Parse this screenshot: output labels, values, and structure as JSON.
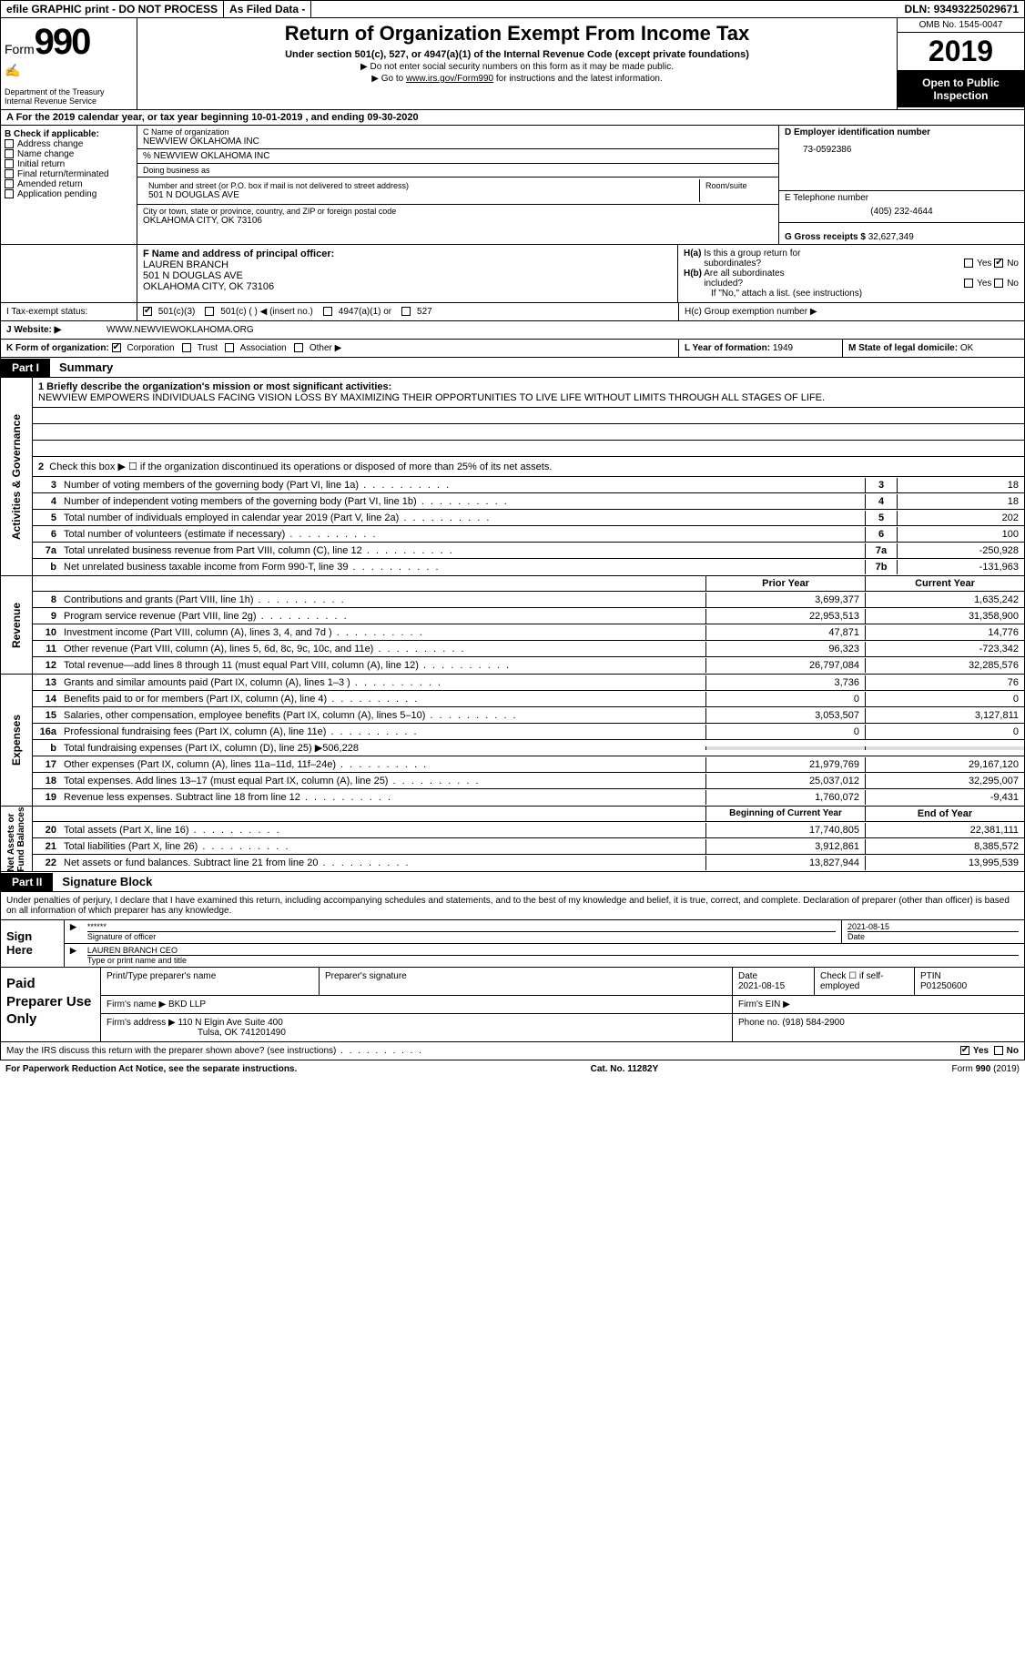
{
  "top": {
    "efile": "efile GRAPHIC print - DO NOT PROCESS",
    "asfiled": "As Filed Data -",
    "dln_lbl": "DLN:",
    "dln": "93493225029671"
  },
  "hdr": {
    "form": "Form",
    "num": "990",
    "dept": "Department of the Treasury\nInternal Revenue Service",
    "title": "Return of Organization Exempt From Income Tax",
    "sub": "Under section 501(c), 527, or 4947(a)(1) of the Internal Revenue Code (except private foundations)",
    "note1": "▶ Do not enter social security numbers on this form as it may be made public.",
    "note2_pre": "▶ Go to ",
    "note2_link": "www.irs.gov/Form990",
    "note2_post": " for instructions and the latest information.",
    "omb": "OMB No. 1545-0047",
    "year": "2019",
    "open": "Open to Public Inspection"
  },
  "a": {
    "txt": "A   For the 2019 calendar year, or tax year beginning 10-01-2019   , and ending 09-30-2020"
  },
  "b": {
    "lbl": "B Check if applicable:",
    "items": [
      "Address change",
      "Name change",
      "Initial return",
      "Final return/terminated",
      "Amended return",
      "Application pending"
    ]
  },
  "c": {
    "name_lbl": "C Name of organization",
    "name": "NEWVIEW OKLAHOMA INC",
    "pct": "% NEWVIEW OKLAHOMA INC",
    "dba_lbl": "Doing business as",
    "addr_lbl": "Number and street (or P.O. box if mail is not delivered to street address)",
    "room_lbl": "Room/suite",
    "addr": "501 N DOUGLAS AVE",
    "city_lbl": "City or town, state or province, country, and ZIP or foreign postal code",
    "city": "OKLAHOMA CITY, OK  73106"
  },
  "d": {
    "lbl": "D Employer identification number",
    "val": "73-0592386"
  },
  "e": {
    "lbl": "E Telephone number",
    "val": "(405) 232-4644"
  },
  "g": {
    "lbl": "G Gross receipts $",
    "val": "32,627,349"
  },
  "f": {
    "lbl": "F  Name and address of principal officer:",
    "name": "LAUREN BRANCH",
    "addr": "501 N DOUGLAS AVE",
    "city": "OKLAHOMA CITY, OK  73106"
  },
  "h": {
    "a": "H(a)  Is this a group return for subordinates?",
    "yes": "Yes",
    "no": "No",
    "b": "H(b)  Are all subordinates included?",
    "note": "If \"No,\" attach a list. (see instructions)",
    "c": "H(c)  Group exemption number ▶"
  },
  "i": {
    "lbl": "I   Tax-exempt status:",
    "o1": "501(c)(3)",
    "o2": "501(c) (   ) ◀ (insert no.)",
    "o3": "4947(a)(1) or",
    "o4": "527"
  },
  "j": {
    "lbl": "J   Website: ▶",
    "val": "WWW.NEWVIEWOKLAHOMA.ORG"
  },
  "k": {
    "lbl": "K Form of organization:",
    "o1": "Corporation",
    "o2": "Trust",
    "o3": "Association",
    "o4": "Other ▶"
  },
  "l": {
    "lbl": "L Year of formation:",
    "val": "1949"
  },
  "m": {
    "lbl": "M State of legal domicile:",
    "val": "OK"
  },
  "part1": {
    "tag": "Part I",
    "title": "Summary"
  },
  "mission": {
    "lbl": "1 Briefly describe the organization's mission or most significant activities:",
    "txt": "NEWVIEW EMPOWERS INDIVIDUALS FACING VISION LOSS BY MAXIMIZING THEIR OPPORTUNITIES TO LIVE LIFE WITHOUT LIMITS THROUGH ALL STAGES OF LIFE."
  },
  "gov": {
    "l2": "Check this box ▶ ☐ if the organization discontinued its operations or disposed of more than 25% of its net assets.",
    "lines": [
      {
        "n": "3",
        "t": "Number of voting members of the governing body (Part VI, line 1a)",
        "b": "3",
        "v": "18"
      },
      {
        "n": "4",
        "t": "Number of independent voting members of the governing body (Part VI, line 1b)",
        "b": "4",
        "v": "18"
      },
      {
        "n": "5",
        "t": "Total number of individuals employed in calendar year 2019 (Part V, line 2a)",
        "b": "5",
        "v": "202"
      },
      {
        "n": "6",
        "t": "Total number of volunteers (estimate if necessary)",
        "b": "6",
        "v": "100"
      },
      {
        "n": "7a",
        "t": "Total unrelated business revenue from Part VIII, column (C), line 12",
        "b": "7a",
        "v": "-250,928"
      },
      {
        "n": "b",
        "t": "Net unrelated business taxable income from Form 990-T, line 39",
        "b": "7b",
        "v": "-131,963"
      }
    ]
  },
  "colhdr": {
    "py": "Prior Year",
    "cy": "Current Year"
  },
  "rev": {
    "title": "Revenue",
    "lines": [
      {
        "n": "8",
        "t": "Contributions and grants (Part VIII, line 1h)",
        "py": "3,699,377",
        "cy": "1,635,242"
      },
      {
        "n": "9",
        "t": "Program service revenue (Part VIII, line 2g)",
        "py": "22,953,513",
        "cy": "31,358,900"
      },
      {
        "n": "10",
        "t": "Investment income (Part VIII, column (A), lines 3, 4, and 7d )",
        "py": "47,871",
        "cy": "14,776"
      },
      {
        "n": "11",
        "t": "Other revenue (Part VIII, column (A), lines 5, 6d, 8c, 9c, 10c, and 11e)",
        "py": "96,323",
        "cy": "-723,342"
      },
      {
        "n": "12",
        "t": "Total revenue—add lines 8 through 11 (must equal Part VIII, column (A), line 12)",
        "py": "26,797,084",
        "cy": "32,285,576"
      }
    ]
  },
  "exp": {
    "title": "Expenses",
    "lines": [
      {
        "n": "13",
        "t": "Grants and similar amounts paid (Part IX, column (A), lines 1–3 )",
        "py": "3,736",
        "cy": "76"
      },
      {
        "n": "14",
        "t": "Benefits paid to or for members (Part IX, column (A), line 4)",
        "py": "0",
        "cy": "0"
      },
      {
        "n": "15",
        "t": "Salaries, other compensation, employee benefits (Part IX, column (A), lines 5–10)",
        "py": "3,053,507",
        "cy": "3,127,811"
      },
      {
        "n": "16a",
        "t": "Professional fundraising fees (Part IX, column (A), line 11e)",
        "py": "0",
        "cy": "0"
      },
      {
        "n": "b",
        "t": "Total fundraising expenses (Part IX, column (D), line 25) ▶506,228",
        "py": "",
        "cy": "",
        "shade": true
      },
      {
        "n": "17",
        "t": "Other expenses (Part IX, column (A), lines 11a–11d, 11f–24e)",
        "py": "21,979,769",
        "cy": "29,167,120"
      },
      {
        "n": "18",
        "t": "Total expenses. Add lines 13–17 (must equal Part IX, column (A), line 25)",
        "py": "25,037,012",
        "cy": "32,295,007"
      },
      {
        "n": "19",
        "t": "Revenue less expenses. Subtract line 18 from line 12",
        "py": "1,760,072",
        "cy": "-9,431"
      }
    ]
  },
  "colhdr2": {
    "py": "Beginning of Current Year",
    "cy": "End of Year"
  },
  "nab": {
    "title": "Net Assets or Fund Balances",
    "lines": [
      {
        "n": "20",
        "t": "Total assets (Part X, line 16)",
        "py": "17,740,805",
        "cy": "22,381,111"
      },
      {
        "n": "21",
        "t": "Total liabilities (Part X, line 26)",
        "py": "3,912,861",
        "cy": "8,385,572"
      },
      {
        "n": "22",
        "t": "Net assets or fund balances. Subtract line 21 from line 20",
        "py": "13,827,944",
        "cy": "13,995,539"
      }
    ]
  },
  "part2": {
    "tag": "Part II",
    "title": "Signature Block"
  },
  "sig": {
    "decl": "Under penalties of perjury, I declare that I have examined this return, including accompanying schedules and statements, and to the best of my knowledge and belief, it is true, correct, and complete. Declaration of preparer (other than officer) is based on all information of which preparer has any knowledge.",
    "here": "Sign Here",
    "stars": "******",
    "date": "2021-08-15",
    "sig_of": "Signature of officer",
    "date_lbl": "Date",
    "name": "LAUREN BRANCH CEO",
    "name_lbl": "Type or print name and title"
  },
  "prep": {
    "lbl": "Paid Preparer Use Only",
    "h1": "Print/Type preparer's name",
    "h2": "Preparer's signature",
    "h3_lbl": "Date",
    "h3": "2021-08-15",
    "h4": "Check ☐ if self-employed",
    "h5_lbl": "PTIN",
    "h5": "P01250600",
    "firm_lbl": "Firm's name   ▶",
    "firm": "BKD LLP",
    "ein_lbl": "Firm's EIN ▶",
    "addr_lbl": "Firm's address ▶",
    "addr": "110 N Elgin Ave Suite 400",
    "addr2": "Tulsa, OK  741201490",
    "phone_lbl": "Phone no.",
    "phone": "(918) 584-2900"
  },
  "foot": {
    "q": "May the IRS discuss this return with the preparer shown above? (see instructions)",
    "yes": "Yes",
    "no": "No",
    "pra": "For Paperwork Reduction Act Notice, see the separate instructions.",
    "cat": "Cat. No. 11282Y",
    "form": "Form 990 (2019)"
  },
  "vert": {
    "gov": "Activities & Governance",
    "rev": "Revenue",
    "exp": "Expenses",
    "nab": "Net Assets or\nFund Balances"
  }
}
